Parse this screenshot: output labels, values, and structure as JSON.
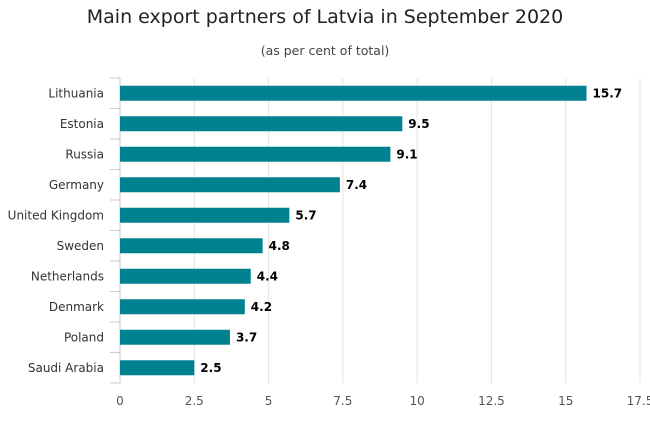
{
  "chart_data": {
    "type": "bar",
    "orientation": "horizontal",
    "title": "Main export partners of Latvia in September 2020",
    "subtitle": "(as per cent of total)",
    "categories": [
      "Lithuania",
      "Estonia",
      "Russia",
      "Germany",
      "United Kingdom",
      "Sweden",
      "Netherlands",
      "Denmark",
      "Poland",
      "Saudi Arabia"
    ],
    "values": [
      15.7,
      9.5,
      9.1,
      7.4,
      5.7,
      4.8,
      4.4,
      4.2,
      3.7,
      2.5
    ],
    "value_labels": [
      "15.7",
      "9.5",
      "9.1",
      "7.4",
      "5.7",
      "4.8",
      "4.4",
      "4.2",
      "3.7",
      "2.5"
    ],
    "xlim": [
      0,
      17.5
    ],
    "xticks": [
      0,
      2.5,
      5,
      7.5,
      10,
      12.5,
      15,
      17.5
    ],
    "xtick_labels": [
      "0",
      "2.5",
      "5",
      "7.5",
      "10",
      "12.5",
      "15",
      "17.5"
    ],
    "grid": "vertical",
    "legend": "none",
    "xlabel": "",
    "ylabel": ""
  },
  "colors": {
    "bar": "#00818f",
    "grid": "#e3e3e3",
    "axis": "#c5cad3"
  }
}
